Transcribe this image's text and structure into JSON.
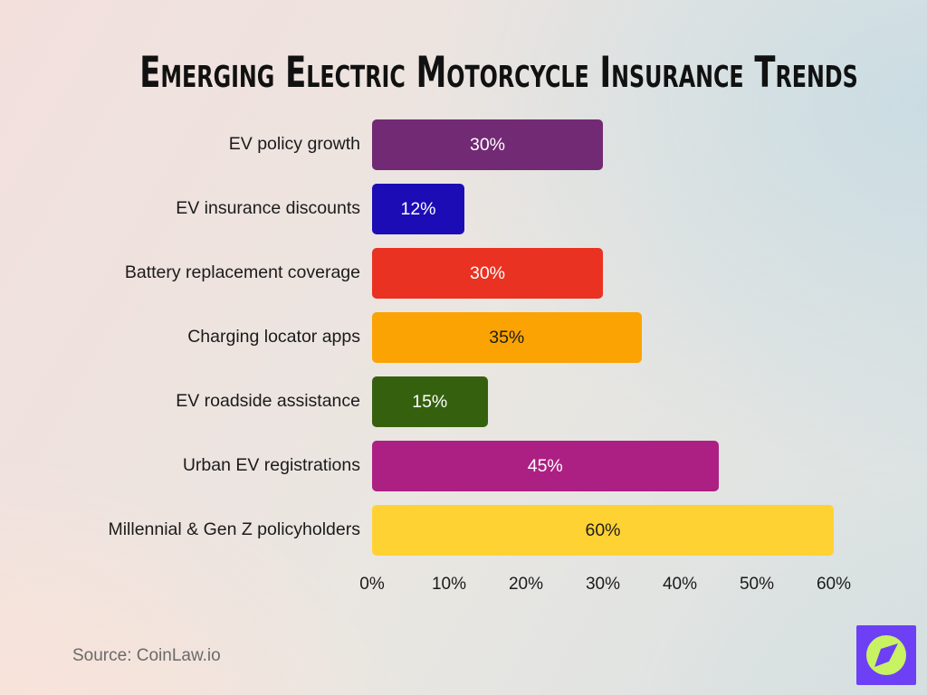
{
  "title": "Emerging Electric Motorcycle Insurance Trends",
  "source": "Source: CoinLaw.io",
  "logo": {
    "name": "coinlaw-compass-logo",
    "square_color": "#6d40f5",
    "circle_color": "#c9f263",
    "needle_color": "#6d40f5"
  },
  "chart_data": {
    "type": "bar",
    "orientation": "horizontal",
    "title": "Emerging Electric Motorcycle Insurance Trends",
    "categories": [
      "EV policy growth",
      "EV insurance discounts",
      "Battery replacement coverage",
      "Charging locator apps",
      "EV roadside assistance",
      "Urban EV registrations",
      "Millennial & Gen Z policyholders"
    ],
    "values": [
      30,
      12,
      30,
      35,
      15,
      45,
      60
    ],
    "value_labels": [
      "30%",
      "12%",
      "30%",
      "35%",
      "15%",
      "45%",
      "60%"
    ],
    "bar_colors": [
      "#722a74",
      "#1c0cb5",
      "#e93222",
      "#fba302",
      "#35610f",
      "#ad2083",
      "#ffd233"
    ],
    "value_text_colors": [
      "#ffffff",
      "#ffffff",
      "#ffffff",
      "#1d1d1d",
      "#ffffff",
      "#ffffff",
      "#1d1d1d"
    ],
    "xlabel": "",
    "ylabel": "",
    "xlim": [
      0,
      60
    ],
    "x_ticks": [
      "0%",
      "10%",
      "20%",
      "30%",
      "40%",
      "50%",
      "60%"
    ],
    "grid": false,
    "legend": false
  }
}
